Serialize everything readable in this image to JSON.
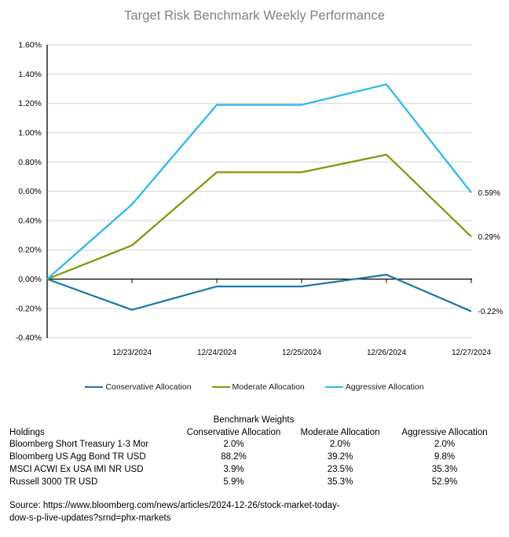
{
  "title": "Target Risk Benchmark Weekly Performance",
  "chart_data": {
    "type": "line",
    "title": "Target Risk Benchmark Weekly Performance",
    "x": [
      "",
      "12/23/2024",
      "12/24/2024",
      "12/25/2024",
      "12/26/2024",
      "12/27/2024"
    ],
    "series": [
      {
        "name": "Conservative Allocation",
        "color": "#1b79a4",
        "values": [
          0.0,
          -0.21,
          -0.05,
          -0.05,
          0.03,
          -0.22
        ],
        "end_label": "-0.22%"
      },
      {
        "name": "Moderate Allocation",
        "color": "#7a9b08",
        "values": [
          0.0,
          0.23,
          0.73,
          0.73,
          0.85,
          0.29
        ],
        "end_label": "0.29%"
      },
      {
        "name": "Aggressive Allocation",
        "color": "#29b8ec",
        "values": [
          0.0,
          0.51,
          1.19,
          1.19,
          1.33,
          0.59
        ],
        "end_label": "0.59%"
      }
    ],
    "ylim": [
      -0.4,
      1.6
    ],
    "ytick_step": 0.2,
    "y_tick_labels": [
      "1.60%",
      "1.40%",
      "1.20%",
      "1.00%",
      "0.80%",
      "0.60%",
      "0.40%",
      "0.20%",
      "0.00%",
      "-0.20%",
      "-0.40%"
    ],
    "grid": true,
    "legend_position": "bottom"
  },
  "colors": {
    "gridline": "#d3d3d3",
    "axis": "#000000",
    "title_text": "#7f7f7f",
    "label_text": "#000000"
  },
  "table": {
    "caption": "Benchmark Weights",
    "columns": [
      "Holdings",
      "Conservative Allocation",
      "Moderate Allocation",
      "Aggressive Allocation"
    ],
    "rows": [
      [
        "Bloomberg Short Treasury 1-3 Mor",
        "2.0%",
        "2.0%",
        "2.0%"
      ],
      [
        "Bloomberg US Agg Bond TR USD",
        "88.2%",
        "39.2%",
        "9.8%"
      ],
      [
        "MSCI ACWI Ex USA IMI NR USD",
        "3.9%",
        "23.5%",
        "35.3%"
      ],
      [
        "Russell 3000 TR USD",
        "5.9%",
        "35.3%",
        "52.9%"
      ]
    ]
  },
  "source": {
    "line1": "Source: https://www.bloomberg.com/news/articles/2024-12-26/stock-market-today-",
    "line2": "dow-s-p-live-updates?srnd=phx-markets"
  }
}
